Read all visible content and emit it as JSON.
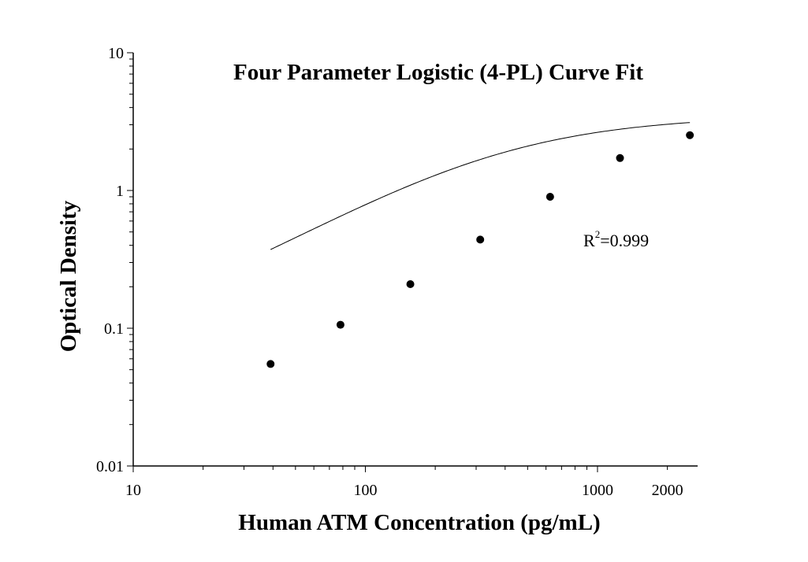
{
  "chart_data": {
    "type": "scatter",
    "title": "Four Parameter Logistic (4-PL) Curve Fit",
    "xlabel": "Human ATM Concentration (pg/mL)",
    "ylabel": "Optical Density",
    "x_scale": "log",
    "y_scale": "log",
    "xlim": [
      10,
      2700
    ],
    "ylim": [
      0.01,
      10
    ],
    "x_ticks": [
      {
        "value": 10,
        "label": "10"
      },
      {
        "value": 100,
        "label": "100"
      },
      {
        "value": 1000,
        "label": "1000"
      },
      {
        "value": 2000,
        "label": "2000"
      }
    ],
    "y_ticks": [
      {
        "value": 0.01,
        "label": "0.01"
      },
      {
        "value": 0.1,
        "label": "0.1"
      },
      {
        "value": 1,
        "label": "1"
      },
      {
        "value": 10,
        "label": "10"
      }
    ],
    "grid": false,
    "legend": "none",
    "series": [
      {
        "type": "scatter",
        "x": [
          39.06,
          78.13,
          156.25,
          312.5,
          625,
          1250,
          2500
        ],
        "y": [
          0.055,
          0.106,
          0.209,
          0.44,
          0.9,
          1.72,
          2.52
        ]
      },
      {
        "type": "line",
        "fit": "4-PL"
      }
    ],
    "annotation": {
      "prefix": "R",
      "superscript": "2",
      "suffix": "=0.999"
    },
    "colors": {
      "points": "#000000",
      "curve": "#000000",
      "axis": "#000000"
    }
  }
}
